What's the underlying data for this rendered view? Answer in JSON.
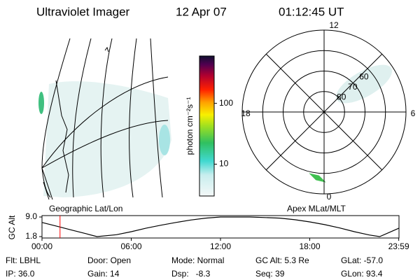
{
  "header": {
    "title": "Ultraviolet Imager",
    "date": "12 Apr 07",
    "time": "01:12:45 UT"
  },
  "left_map": {
    "caption": "Geographic Lat/Lon"
  },
  "colorbar": {
    "label": "photon cm⁻²s⁻¹",
    "ticks": [
      10,
      100
    ],
    "lim": [
      3,
      600
    ],
    "log": true
  },
  "polar": {
    "caption": "Apex MLat/MLT",
    "mlt_labels": [
      "12",
      "18",
      "6",
      "0"
    ],
    "lat_rings": [
      80,
      70,
      60
    ],
    "lat_lim": [
      90,
      50
    ]
  },
  "chart_data": {
    "type": "line",
    "y_label": "GC Alt",
    "x": [
      0,
      1,
      2,
      3,
      3.7,
      5,
      6,
      7,
      8,
      9,
      10,
      11,
      12,
      14,
      16,
      17,
      18,
      19,
      20,
      21,
      22,
      22.7,
      24
    ],
    "values": [
      7.0,
      5.6,
      4.2,
      2.8,
      1.8,
      2.5,
      3.6,
      4.9,
      6.0,
      7.0,
      7.9,
      8.6,
      9.0,
      9.0,
      8.6,
      8.0,
      7.2,
      6.2,
      5.0,
      3.6,
      2.4,
      1.8,
      4.9
    ],
    "color": "#000000",
    "marker_x": 1.2125,
    "marker_color": "#ff0000",
    "xlim": [
      0,
      24
    ],
    "ylim": [
      1.8,
      9
    ],
    "xticks": [
      {
        "value": 0,
        "label": "00:00"
      },
      {
        "value": 6,
        "label": "06:00"
      },
      {
        "value": 12,
        "label": "12:00"
      },
      {
        "value": 18,
        "label": "18:00"
      },
      {
        "value": 23.983,
        "label": "23:59"
      }
    ],
    "yticks": [
      {
        "value": 9,
        "label": "9.0"
      },
      {
        "value": 1.8,
        "label": "1.8"
      }
    ]
  },
  "info": {
    "rows": [
      [
        "Flt: LBHL",
        "Door: Open",
        "Mode: Normal",
        "GC Alt: 5.3 Re",
        "GLat: -57.0"
      ],
      [
        "IP: 36.0",
        "Gain: 14",
        "Dsp:   -8.3",
        "Seq: 39",
        "GLon: 93.4"
      ]
    ]
  }
}
